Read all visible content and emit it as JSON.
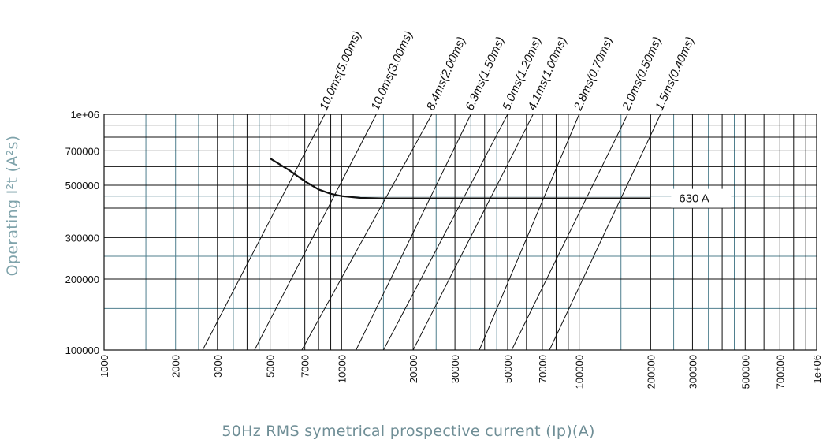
{
  "chart_data": {
    "type": "line",
    "title": "",
    "xlabel": "50Hz RMS symetrical prospective current (Ip)(A)",
    "ylabel": "Operating I²t (A²s)",
    "x_scale": "log",
    "y_scale": "log",
    "xlim": [
      1000,
      1000000
    ],
    "ylim": [
      100000,
      1000000
    ],
    "grid": true,
    "x_ticks": [
      {
        "value": 1000,
        "label": "1000"
      },
      {
        "value": 2000,
        "label": "2000"
      },
      {
        "value": 3000,
        "label": "3000"
      },
      {
        "value": 5000,
        "label": "5000"
      },
      {
        "value": 7000,
        "label": "7000"
      },
      {
        "value": 10000,
        "label": "10000"
      },
      {
        "value": 20000,
        "label": "20000"
      },
      {
        "value": 30000,
        "label": "30000"
      },
      {
        "value": 50000,
        "label": "50000"
      },
      {
        "value": 70000,
        "label": "70000"
      },
      {
        "value": 100000,
        "label": "100000"
      },
      {
        "value": 200000,
        "label": "200000"
      },
      {
        "value": 300000,
        "label": "300000"
      },
      {
        "value": 500000,
        "label": "500000"
      },
      {
        "value": 700000,
        "label": "700000"
      },
      {
        "value": 1000000,
        "label": "1e+06"
      }
    ],
    "y_ticks": [
      {
        "value": 100000,
        "label": "100000"
      },
      {
        "value": 200000,
        "label": "200000"
      },
      {
        "value": 300000,
        "label": "300000"
      },
      {
        "value": 500000,
        "label": "500000"
      },
      {
        "value": 700000,
        "label": "700000"
      },
      {
        "value": 1000000,
        "label": "1e+06"
      }
    ],
    "grid_x_black": [
      1000,
      3000,
      4000,
      5000,
      6000,
      7000,
      8000,
      9000,
      10000,
      20000,
      30000,
      40000,
      50000,
      60000,
      70000,
      80000,
      90000,
      100000,
      200000,
      300000,
      400000,
      500000,
      600000,
      700000,
      800000,
      900000,
      1000000
    ],
    "grid_x_blue": [
      1500,
      2000,
      2500,
      3500,
      4500,
      15000,
      25000,
      35000,
      45000,
      150000,
      250000,
      350000,
      450000
    ],
    "grid_y_black": [
      100000,
      200000,
      300000,
      400000,
      500000,
      600000,
      700000,
      800000,
      900000,
      1000000
    ],
    "grid_y_blue": [
      150000,
      250000,
      450000
    ],
    "let_through_lines": [
      {
        "label": "10.0ms(5.00ms)",
        "x_at_ymin": 2600,
        "x_at_ymax": 8500
      },
      {
        "label": "10.0ms(3.00ms)",
        "x_at_ymin": 4300,
        "x_at_ymax": 14000
      },
      {
        "label": "8.4ms(2.00ms)",
        "x_at_ymin": 6800,
        "x_at_ymax": 24000
      },
      {
        "label": "6.3ms(1.50ms)",
        "x_at_ymin": 11500,
        "x_at_ymax": 35000
      },
      {
        "label": "5.0ms(1.20ms)",
        "x_at_ymin": 15000,
        "x_at_ymax": 50000
      },
      {
        "label": "4.1ms(1.00ms)",
        "x_at_ymin": 20000,
        "x_at_ymax": 64000
      },
      {
        "label": "2.8ms(0.70ms)",
        "x_at_ymin": 38000,
        "x_at_ymax": 100000
      },
      {
        "label": "2.0ms(0.50ms)",
        "x_at_ymin": 52000,
        "x_at_ymax": 160000
      },
      {
        "label": "1.5ms(0.40ms)",
        "x_at_ymin": 75000,
        "x_at_ymax": 220000
      }
    ],
    "series": [
      {
        "name": "630 A",
        "x": [
          5000,
          6000,
          7000,
          8000,
          9000,
          10000,
          12000,
          15000,
          20000,
          50000,
          100000,
          200000
        ],
        "y": [
          650000,
          580000,
          520000,
          480000,
          460000,
          450000,
          442000,
          440000,
          440000,
          440000,
          440000,
          440000
        ]
      }
    ]
  }
}
